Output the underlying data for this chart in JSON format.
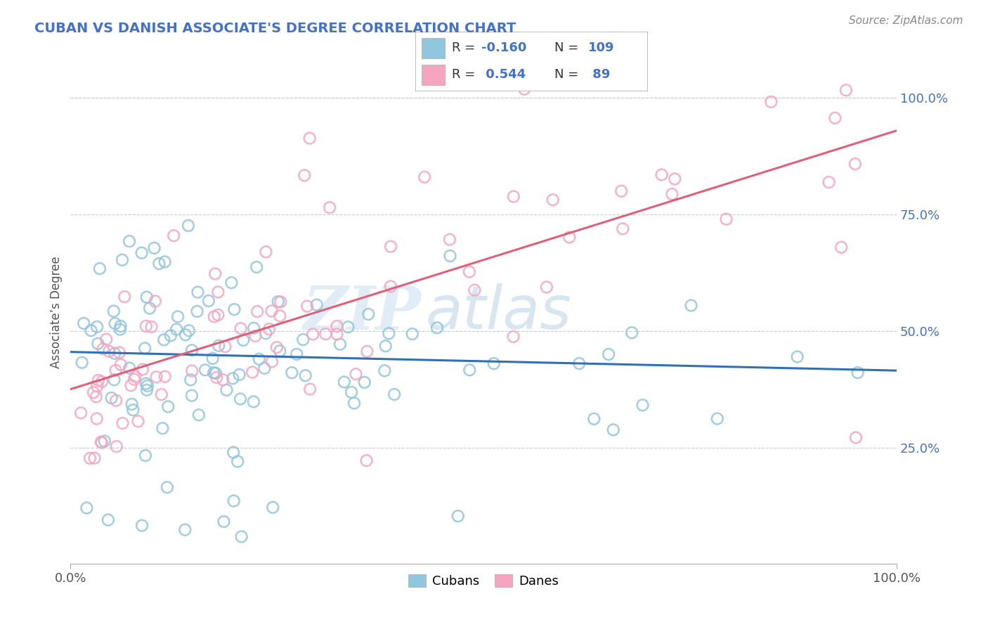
{
  "title": "CUBAN VS DANISH ASSOCIATE'S DEGREE CORRELATION CHART",
  "source": "Source: ZipAtlas.com",
  "ylabel": "Associate’s Degree",
  "watermark_zip": "ZIP",
  "watermark_atlas": "atlas",
  "blue_color": "#92c5de",
  "pink_color": "#f4a6c0",
  "blue_line_color": "#3070b8",
  "pink_line_color": "#e0607a",
  "title_color": "#4472c4",
  "legend_text_color": "#4472c4",
  "right_tick_color": "#4472c4",
  "xlim": [
    0.0,
    1.0
  ],
  "ylim": [
    0.0,
    1.08
  ],
  "blue_line_x": [
    0.0,
    1.0
  ],
  "blue_line_y": [
    0.455,
    0.415
  ],
  "pink_line_x": [
    0.0,
    1.0
  ],
  "pink_line_y": [
    0.375,
    0.93
  ]
}
